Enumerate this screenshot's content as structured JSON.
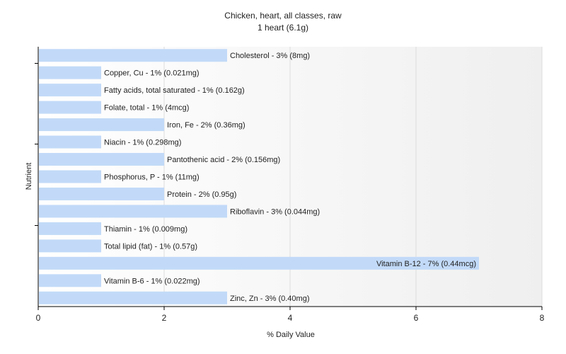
{
  "chart_data": {
    "type": "bar",
    "orientation": "horizontal",
    "title": "Chicken, heart, all classes, raw",
    "subtitle": "1 heart (6.1g)",
    "xlabel": "% Daily Value",
    "ylabel": "Nutrient",
    "xlim": [
      0,
      8
    ],
    "xticks": [
      0,
      2,
      4,
      6,
      8
    ],
    "grid": true,
    "bar_color": "#c2daf8",
    "categories": [
      "Cholesterol",
      "Copper, Cu",
      "Fatty acids, total saturated",
      "Folate, total",
      "Iron, Fe",
      "Niacin",
      "Pantothenic acid",
      "Phosphorus, P",
      "Protein",
      "Riboflavin",
      "Thiamin",
      "Total lipid (fat)",
      "Vitamin B-12",
      "Vitamin B-6",
      "Zinc, Zn"
    ],
    "values": [
      3,
      1,
      1,
      1,
      2,
      1,
      2,
      1,
      2,
      3,
      1,
      1,
      7,
      1,
      3
    ],
    "labels": [
      "Cholesterol - 3% (8mg)",
      "Copper, Cu - 1% (0.021mg)",
      "Fatty acids, total saturated - 1% (0.162g)",
      "Folate, total - 1% (4mcg)",
      "Iron, Fe - 2% (0.36mg)",
      "Niacin - 1% (0.298mg)",
      "Pantothenic acid - 2% (0.156mg)",
      "Phosphorus, P - 1% (11mg)",
      "Protein - 2% (0.95g)",
      "Riboflavin - 3% (0.044mg)",
      "Thiamin - 1% (0.009mg)",
      "Total lipid (fat) - 1% (0.57g)",
      "Vitamin B-12 - 7% (0.44mcg)",
      "Vitamin B-6 - 1% (0.022mg)",
      "Zinc, Zn - 3% (0.40mg)"
    ]
  }
}
